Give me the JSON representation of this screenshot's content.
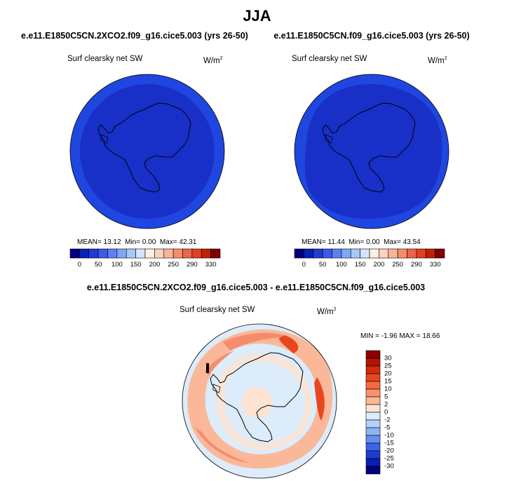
{
  "title": "JJA",
  "panels": [
    {
      "case": "e.e11.E1850C5CN.2XCO2.f09_g16.cice5.003 (yrs 26-50)",
      "variable": "Surf clearsky net SW",
      "units": "W/m",
      "units_exp": "2",
      "stats": {
        "mean_label": "MEAN=",
        "mean": "13.12",
        "min_label": "Min=",
        "min": "0.00",
        "max_label": "Max=",
        "max": "42.31"
      }
    },
    {
      "case": "e.e11.E1850C5CN.f09_g16.cice5.003 (yrs 26-50)",
      "variable": "Surf clearsky net SW",
      "units": "W/m",
      "units_exp": "2",
      "stats": {
        "mean_label": "MEAN=",
        "mean": "11.44",
        "min_label": "Min=",
        "min": "0.00",
        "max_label": "Max=",
        "max": "43.54"
      }
    }
  ],
  "colorbar_top": {
    "colors": [
      "#000080",
      "#0a1fb4",
      "#1e3cd2",
      "#3c5ae6",
      "#5a82f0",
      "#7ea6f6",
      "#a8c8fa",
      "#d2e6fc",
      "#fdeee2",
      "#fcd2bc",
      "#f9b496",
      "#f48c6e",
      "#ee6446",
      "#e0401e",
      "#c02008",
      "#800000"
    ],
    "ticks": [
      "0",
      "50",
      "100",
      "150",
      "200",
      "250",
      "290",
      "330"
    ]
  },
  "diff": {
    "title": "e.e11.E1850C5CN.2XCO2.f09_g16.cice5.003 - e.e11.E1850C5CN.f09_g16.cice5.003",
    "variable": "Surf clearsky net SW",
    "units": "W/m",
    "units_exp": "2",
    "stats": {
      "min_label": "MIN =",
      "min": "-1.96",
      "max_label": "MAX =",
      "max": "18.66"
    }
  },
  "colorbar_diff": {
    "colors_top_to_bottom": [
      "#8c0000",
      "#b41400",
      "#d22a0a",
      "#e8461e",
      "#f46a40",
      "#f8926c",
      "#fab898",
      "#fde4d2",
      "#dcecfa",
      "#b4d2f8",
      "#8cb4f4",
      "#6490ee",
      "#3c64e6",
      "#1e3cd2",
      "#0a1eb4",
      "#000080"
    ],
    "ticks_top_to_bottom": [
      "30",
      "25",
      "20",
      "15",
      "10",
      "5",
      "2",
      "0",
      "-2",
      "-5",
      "-10",
      "-15",
      "-20",
      "-25",
      "-30"
    ]
  }
}
